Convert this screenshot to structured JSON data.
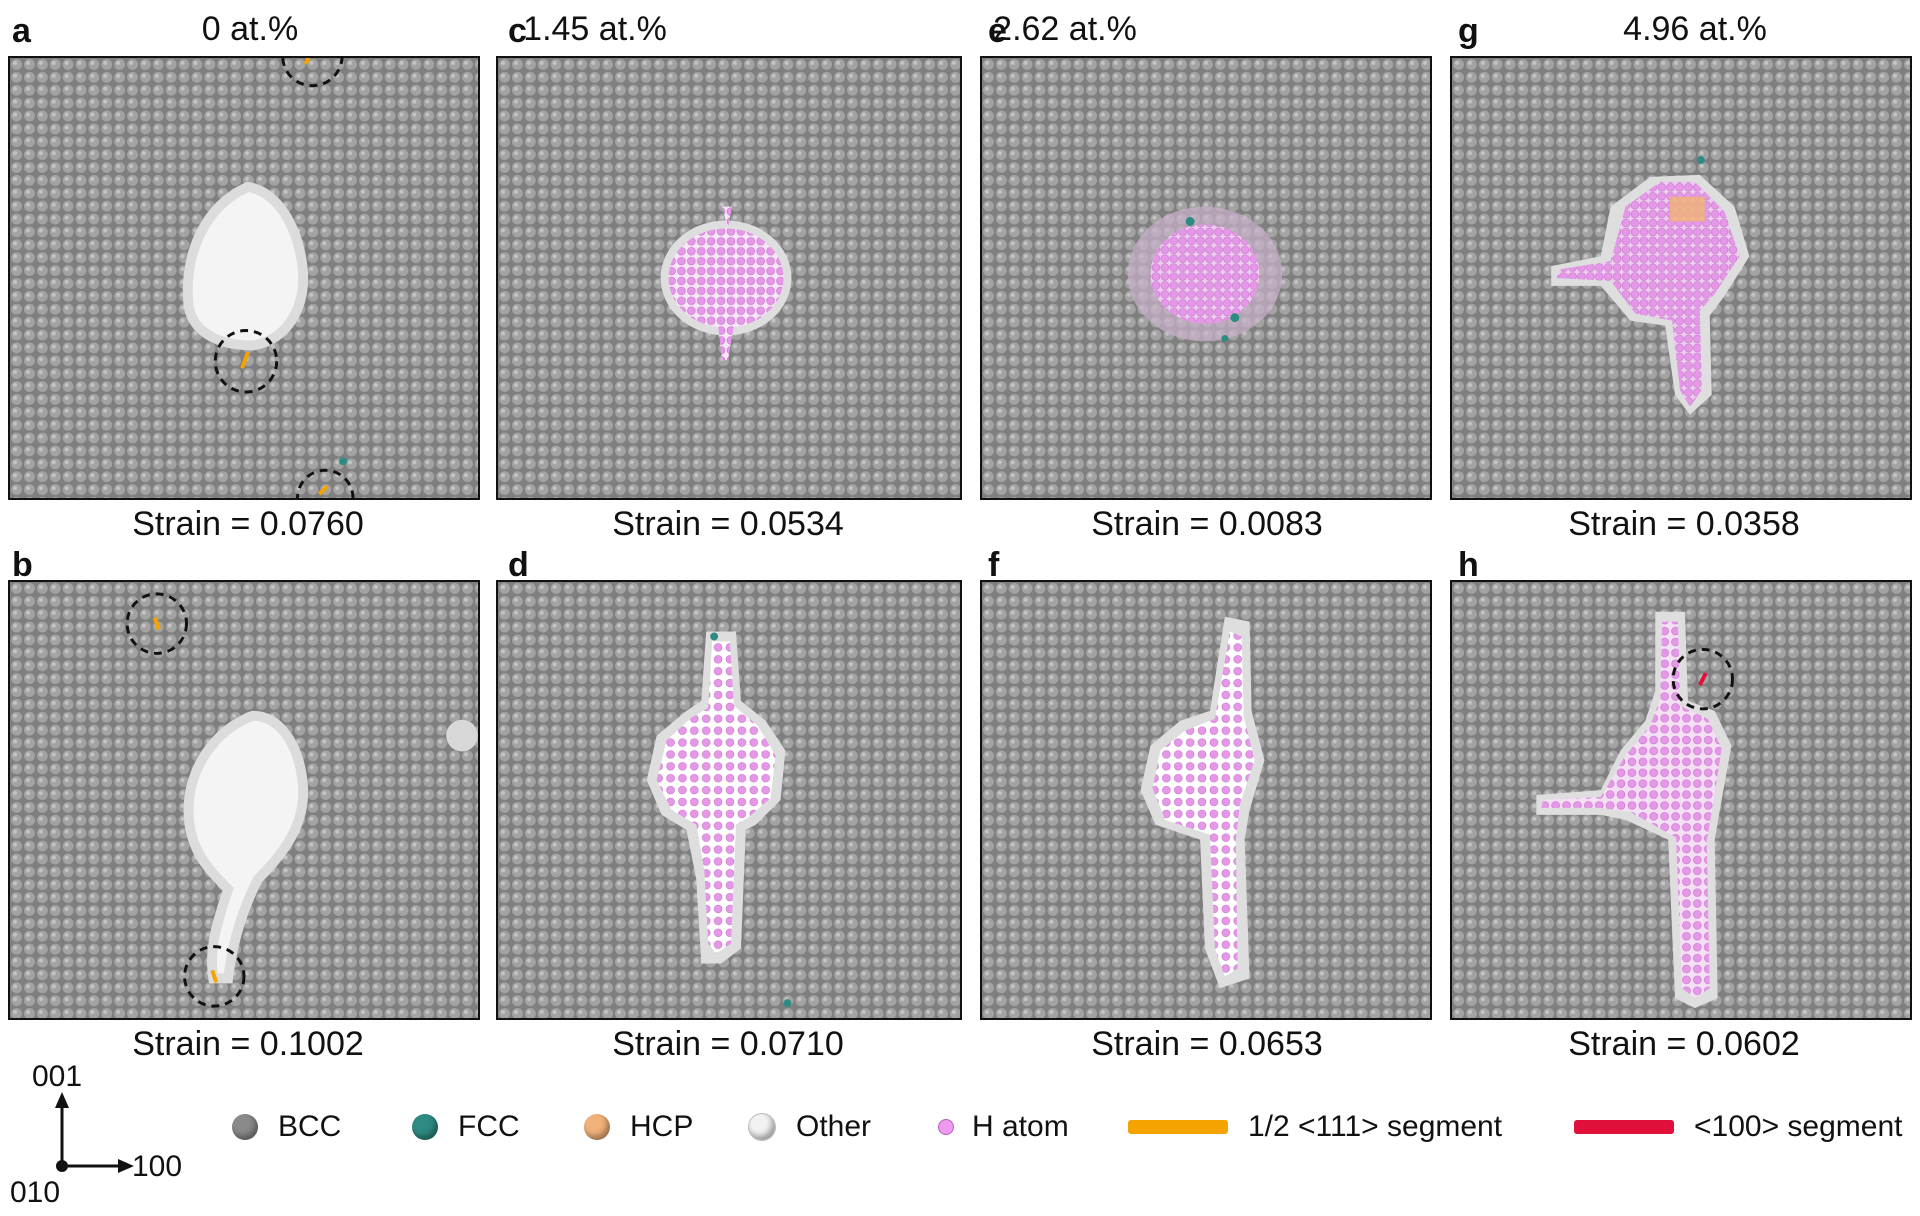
{
  "columns": [
    {
      "id": "a",
      "label": "a",
      "concentration": "0 at.%"
    },
    {
      "id": "c",
      "label": "c",
      "concentration": "1.45 at.%"
    },
    {
      "id": "e",
      "label": "e",
      "concentration": "2.62 at.%"
    },
    {
      "id": "g",
      "label": "g",
      "concentration": "4.96 at.%"
    }
  ],
  "panels": {
    "a": {
      "label": "a",
      "strain": "Strain = 0.0760"
    },
    "b": {
      "label": "b",
      "strain": "Strain = 0.1002"
    },
    "c": {
      "label": "c",
      "strain": "Strain = 0.0534"
    },
    "d": {
      "label": "d",
      "strain": "Strain = 0.0710"
    },
    "e": {
      "label": "e",
      "strain": "Strain = 0.0083"
    },
    "f": {
      "label": "f",
      "strain": "Strain = 0.0653"
    },
    "g": {
      "label": "g",
      "strain": "Strain = 0.0358"
    },
    "h": {
      "label": "h",
      "strain": "Strain = 0.0602"
    }
  },
  "axes": {
    "up": "001",
    "right": "100",
    "out": "010"
  },
  "legend": [
    {
      "name": "BCC",
      "color": "#8a8a8a",
      "kind": "sphere"
    },
    {
      "name": "FCC",
      "color": "#2e8b84",
      "kind": "sphere"
    },
    {
      "name": "HCP",
      "color": "#f1b27a",
      "kind": "sphere"
    },
    {
      "name": "Other",
      "color": "#f2f2f2",
      "kind": "sphere"
    },
    {
      "name": "H atom",
      "color": "#ee9af0",
      "kind": "h"
    },
    {
      "name": "1/2 <111> segment",
      "color": "#f5a300",
      "kind": "segment"
    },
    {
      "name": "<100> segment",
      "color": "#e0103a",
      "kind": "segment"
    }
  ],
  "colors": {
    "bcc": "#8f8f8f",
    "void": "#ffffff",
    "other": "#e6e6e6",
    "h_atom": "#e79ae9",
    "fcc": "#2e8b84",
    "hcp": "#f0b27a",
    "seg111": "#f5a300",
    "seg100": "#e0103a"
  }
}
